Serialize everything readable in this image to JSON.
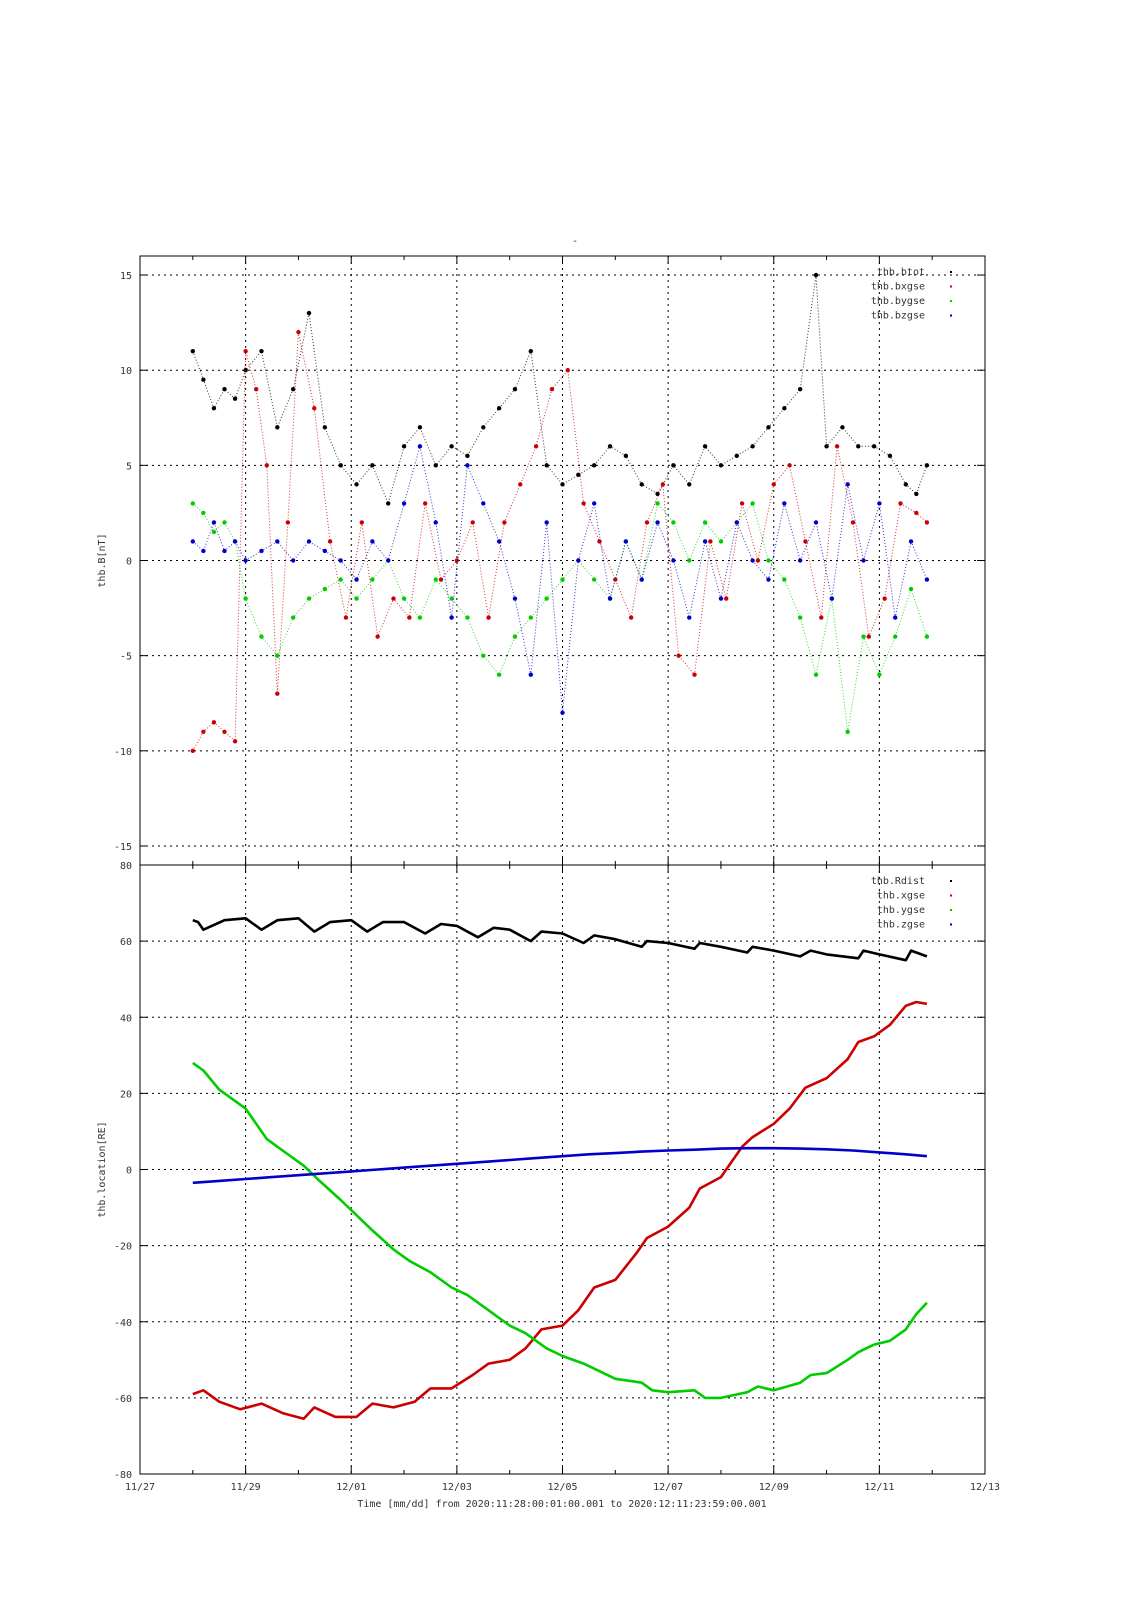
{
  "figure": {
    "top_title": "-",
    "xlabel": "Time [mm/dd]  from 2020:11:28:00:01:00.001  to  2020:12:11:23:59:00.001",
    "x_ticks": [
      "11/27",
      "11/29",
      "12/01",
      "12/03",
      "12/05",
      "12/07",
      "12/09",
      "12/11",
      "12/13"
    ]
  },
  "colors": {
    "black": "#000000",
    "red": "#cc0000",
    "green": "#00cc00",
    "blue": "#0000cc"
  },
  "chart_data": [
    {
      "type": "scatter",
      "ylabel": "thb.B[nT]",
      "xlim": [
        0,
        16
      ],
      "ylim": [
        -16,
        16
      ],
      "y_ticks": [
        15,
        10,
        5,
        0,
        -5,
        -10,
        -15
      ],
      "x_unit": "days since 11/27",
      "legend_position": "top-right",
      "series": [
        {
          "name": "thb.btot",
          "color": "black",
          "x": [
            1.0,
            1.2,
            1.4,
            1.6,
            1.8,
            2.0,
            2.3,
            2.6,
            2.9,
            3.2,
            3.5,
            3.8,
            4.1,
            4.4,
            4.7,
            5.0,
            5.3,
            5.6,
            5.9,
            6.2,
            6.5,
            6.8,
            7.1,
            7.4,
            7.7,
            8.0,
            8.3,
            8.6,
            8.9,
            9.2,
            9.5,
            9.8,
            10.1,
            10.4,
            10.7,
            11.0,
            11.3,
            11.6,
            11.9,
            12.2,
            12.5,
            12.8,
            13.0,
            13.3,
            13.6,
            13.9,
            14.2,
            14.5,
            14.7,
            14.9
          ],
          "values": [
            11,
            9.5,
            8,
            9,
            8.5,
            10,
            11,
            7,
            9,
            13,
            7,
            5,
            4,
            5,
            3,
            6,
            7,
            5,
            6,
            5.5,
            7,
            8,
            9,
            11,
            5,
            4,
            4.5,
            5,
            6,
            5.5,
            4,
            3.5,
            5,
            4,
            6,
            5,
            5.5,
            6,
            7,
            8,
            9,
            15,
            6,
            7,
            6,
            6,
            5.5,
            4,
            3.5,
            5
          ]
        },
        {
          "name": "thb.bxgse",
          "color": "red",
          "x": [
            1.0,
            1.2,
            1.4,
            1.6,
            1.8,
            2.0,
            2.2,
            2.4,
            2.6,
            2.8,
            3.0,
            3.3,
            3.6,
            3.9,
            4.2,
            4.5,
            4.8,
            5.1,
            5.4,
            5.7,
            6.0,
            6.3,
            6.6,
            6.9,
            7.2,
            7.5,
            7.8,
            8.1,
            8.4,
            8.7,
            9.0,
            9.3,
            9.6,
            9.9,
            10.2,
            10.5,
            10.8,
            11.1,
            11.4,
            11.7,
            12.0,
            12.3,
            12.6,
            12.9,
            13.2,
            13.5,
            13.8,
            14.1,
            14.4,
            14.7,
            14.9
          ],
          "values": [
            -10,
            -9,
            -8.5,
            -9,
            -9.5,
            11,
            9,
            5,
            -7,
            2,
            12,
            8,
            1,
            -3,
            2,
            -4,
            -2,
            -3,
            3,
            -1,
            0,
            2,
            -3,
            2,
            4,
            6,
            9,
            10,
            3,
            1,
            -1,
            -3,
            2,
            4,
            -5,
            -6,
            1,
            -2,
            3,
            0,
            4,
            5,
            1,
            -3,
            6,
            2,
            -4,
            -2,
            3,
            2.5,
            2
          ]
        },
        {
          "name": "thb.bygse",
          "color": "green",
          "x": [
            1.0,
            1.2,
            1.4,
            1.6,
            1.8,
            2.0,
            2.3,
            2.6,
            2.9,
            3.2,
            3.5,
            3.8,
            4.1,
            4.4,
            4.7,
            5.0,
            5.3,
            5.6,
            5.9,
            6.2,
            6.5,
            6.8,
            7.1,
            7.4,
            7.7,
            8.0,
            8.3,
            8.6,
            8.9,
            9.2,
            9.5,
            9.8,
            10.1,
            10.4,
            10.7,
            11.0,
            11.3,
            11.6,
            11.9,
            12.2,
            12.5,
            12.8,
            13.1,
            13.4,
            13.7,
            14.0,
            14.3,
            14.6,
            14.9
          ],
          "values": [
            3,
            2.5,
            1.5,
            2,
            1,
            -2,
            -4,
            -5,
            -3,
            -2,
            -1.5,
            -1,
            -2,
            -1,
            0,
            -2,
            -3,
            -1,
            -2,
            -3,
            -5,
            -6,
            -4,
            -3,
            -2,
            -1,
            0,
            -1,
            -2,
            1,
            -1,
            3,
            2,
            0,
            2,
            1,
            2,
            3,
            0,
            -1,
            -3,
            -6,
            -2,
            -9,
            -4,
            -6,
            -4,
            -1.5,
            -4
          ]
        },
        {
          "name": "thb.bzgse",
          "color": "blue",
          "x": [
            1.0,
            1.2,
            1.4,
            1.6,
            1.8,
            2.0,
            2.3,
            2.6,
            2.9,
            3.2,
            3.5,
            3.8,
            4.1,
            4.4,
            4.7,
            5.0,
            5.3,
            5.6,
            5.9,
            6.2,
            6.5,
            6.8,
            7.1,
            7.4,
            7.7,
            8.0,
            8.3,
            8.6,
            8.9,
            9.2,
            9.5,
            9.8,
            10.1,
            10.4,
            10.7,
            11.0,
            11.3,
            11.6,
            11.9,
            12.2,
            12.5,
            12.8,
            13.1,
            13.4,
            13.7,
            14.0,
            14.3,
            14.6,
            14.9
          ],
          "values": [
            1,
            0.5,
            2,
            0.5,
            1,
            0,
            0.5,
            1,
            0,
            1,
            0.5,
            0,
            -1,
            1,
            0,
            3,
            6,
            2,
            -3,
            5,
            3,
            1,
            -2,
            -6,
            2,
            -8,
            0,
            3,
            -2,
            1,
            -1,
            2,
            0,
            -3,
            1,
            -2,
            2,
            0,
            -1,
            3,
            0,
            2,
            -2,
            4,
            0,
            3,
            -3,
            1,
            -1
          ]
        }
      ]
    },
    {
      "type": "line",
      "ylabel": "thb.location[RE]",
      "xlim": [
        0,
        16
      ],
      "ylim": [
        -80,
        80
      ],
      "y_ticks": [
        80,
        60,
        40,
        20,
        0,
        -20,
        -40,
        -60,
        -80
      ],
      "x_unit": "days since 11/27",
      "legend_position": "top-right",
      "series": [
        {
          "name": "thb.Rdist",
          "color": "black",
          "x": [
            1.0,
            1.1,
            1.2,
            1.6,
            2.0,
            2.3,
            2.6,
            3.0,
            3.3,
            3.6,
            4.0,
            4.3,
            4.6,
            5.0,
            5.4,
            5.7,
            6.0,
            6.4,
            6.7,
            7.0,
            7.4,
            7.6,
            8.0,
            8.4,
            8.6,
            9.0,
            9.5,
            9.6,
            10.0,
            10.5,
            10.6,
            11.0,
            11.5,
            11.6,
            12.0,
            12.5,
            12.7,
            13.0,
            13.6,
            13.7,
            14.0,
            14.5,
            14.6,
            14.9
          ],
          "values": [
            65.5,
            65,
            63,
            65.5,
            66,
            63,
            65.5,
            66,
            62.5,
            65,
            65.5,
            62.5,
            65,
            65,
            62,
            64.5,
            64,
            61,
            63.5,
            63,
            60,
            62.5,
            62,
            59.5,
            61.5,
            60.5,
            58.5,
            60,
            59.5,
            58,
            59.5,
            58.5,
            57,
            58.5,
            57.5,
            56,
            57.5,
            56.5,
            55.5,
            57.5,
            56.5,
            55,
            57.5,
            56
          ]
        },
        {
          "name": "thb.xgse",
          "color": "red",
          "x": [
            1.0,
            1.2,
            1.5,
            1.9,
            2.3,
            2.7,
            3.1,
            3.3,
            3.7,
            4.1,
            4.4,
            4.8,
            5.2,
            5.5,
            5.9,
            6.3,
            6.6,
            7.0,
            7.3,
            7.6,
            8.0,
            8.3,
            8.6,
            9.0,
            9.4,
            9.6,
            10.0,
            10.4,
            10.6,
            11.0,
            11.4,
            11.6,
            12.0,
            12.3,
            12.6,
            13.0,
            13.4,
            13.6,
            13.9,
            14.2,
            14.5,
            14.7,
            14.9
          ],
          "values": [
            -59,
            -58,
            -61,
            -63,
            -61.5,
            -64,
            -65.5,
            -62.5,
            -65,
            -65,
            -61.5,
            -62.5,
            -61,
            -57.5,
            -57.5,
            -54,
            -51,
            -50,
            -47,
            -42,
            -41,
            -37,
            -31,
            -29,
            -22,
            -18,
            -15,
            -10,
            -5,
            -2,
            6,
            8.5,
            12,
            16,
            21.5,
            24,
            29,
            33.5,
            35,
            38,
            43,
            44,
            43.5
          ]
        },
        {
          "name": "thb.ygse",
          "color": "green",
          "x": [
            1.0,
            1.2,
            1.5,
            2.0,
            2.4,
            2.7,
            3.1,
            3.4,
            3.8,
            4.1,
            4.4,
            4.8,
            5.1,
            5.5,
            5.9,
            6.2,
            6.6,
            7.0,
            7.3,
            7.7,
            8.0,
            8.4,
            8.7,
            9.0,
            9.5,
            9.7,
            10.0,
            10.5,
            10.7,
            11.0,
            11.5,
            11.7,
            12.0,
            12.5,
            12.7,
            13.0,
            13.4,
            13.6,
            13.9,
            14.2,
            14.5,
            14.7,
            14.9
          ],
          "values": [
            28,
            26,
            21,
            16,
            8,
            5,
            1,
            -3,
            -8,
            -12,
            -16,
            -21,
            -24,
            -27,
            -31,
            -33,
            -37,
            -41,
            -43,
            -47,
            -49,
            -51,
            -53,
            -55,
            -56,
            -58,
            -58.5,
            -58,
            -60,
            -60,
            -58.5,
            -57,
            -58,
            -56,
            -54,
            -53.5,
            -50,
            -48,
            -46,
            -45,
            -42,
            -38,
            -35
          ]
        },
        {
          "name": "thb.zgse",
          "color": "blue",
          "x": [
            1.0,
            1.5,
            2.0,
            2.5,
            3.0,
            3.5,
            4.0,
            4.5,
            5.0,
            5.5,
            6.0,
            6.5,
            7.0,
            7.5,
            8.0,
            8.5,
            9.0,
            9.5,
            10.0,
            10.5,
            11.0,
            11.5,
            12.0,
            12.5,
            13.0,
            13.5,
            14.0,
            14.5,
            14.9
          ],
          "values": [
            -3.5,
            -3,
            -2.5,
            -2,
            -1.5,
            -1,
            -0.5,
            0,
            0.5,
            1,
            1.5,
            2,
            2.5,
            3,
            3.5,
            4,
            4.3,
            4.7,
            5,
            5.2,
            5.5,
            5.6,
            5.6,
            5.5,
            5.3,
            5,
            4.5,
            4,
            3.5
          ]
        }
      ]
    }
  ]
}
